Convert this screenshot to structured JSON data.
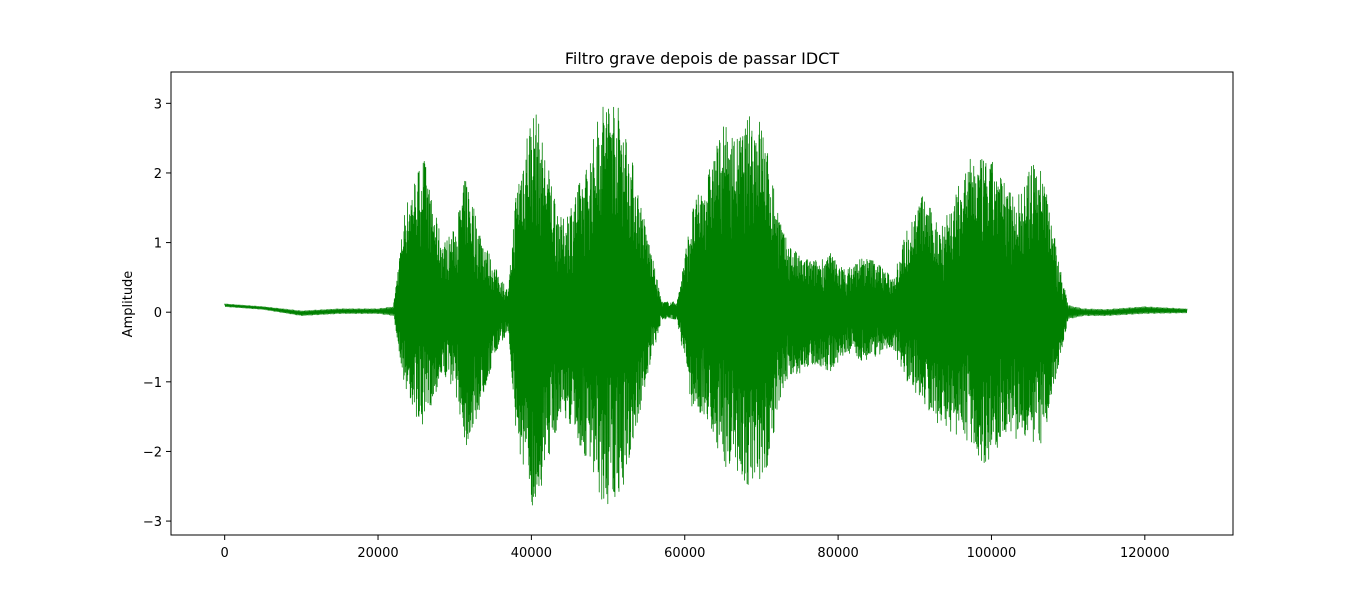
{
  "chart_data": {
    "type": "line",
    "title": "Filtro grave depois de passar IDCT",
    "xlabel": "",
    "ylabel": "Amplitude",
    "xlim": [
      -7000,
      131500
    ],
    "ylim": [
      -3.2,
      3.45
    ],
    "xticks": [
      0,
      20000,
      40000,
      60000,
      80000,
      100000,
      120000
    ],
    "xtick_labels": [
      "0",
      "20000",
      "40000",
      "60000",
      "80000",
      "100000",
      "120000"
    ],
    "yticks": [
      -3,
      -2,
      -1,
      0,
      1,
      2,
      3
    ],
    "ytick_labels": [
      "−3",
      "−2",
      "−1",
      "0",
      "1",
      "2",
      "3"
    ],
    "grid": false,
    "legend": "none",
    "series": [
      {
        "color": "#008000",
        "n_samples": 125500,
        "envelope": {
          "x": [
            0,
            5000,
            10000,
            15000,
            20000,
            22000,
            23500,
            25000,
            26000,
            27000,
            28500,
            30000,
            31500,
            33000,
            35000,
            37000,
            38000,
            39500,
            40500,
            42000,
            44000,
            46000,
            47500,
            49000,
            50500,
            52000,
            53500,
            55000,
            57000,
            59000,
            61000,
            63000,
            65000,
            67000,
            68500,
            70000,
            71500,
            73000,
            75000,
            77000,
            79000,
            81000,
            83000,
            85000,
            87000,
            89000,
            91000,
            93000,
            95000,
            97000,
            99000,
            100500,
            102000,
            104000,
            105500,
            107000,
            108500,
            110000,
            112000,
            115000,
            120000,
            125000
          ],
          "upper": [
            0.12,
            0.08,
            0.02,
            0.05,
            0.05,
            0.08,
            1.5,
            2.0,
            2.25,
            1.6,
            1.0,
            1.2,
            2.0,
            1.3,
            0.7,
            0.3,
            1.8,
            2.7,
            2.95,
            2.2,
            1.3,
            1.8,
            2.2,
            3.0,
            3.17,
            2.8,
            2.0,
            1.2,
            0.15,
            0.15,
            1.5,
            2.0,
            2.7,
            2.5,
            2.85,
            2.8,
            1.9,
            1.1,
            0.8,
            0.75,
            0.85,
            0.6,
            0.8,
            0.75,
            0.5,
            1.2,
            1.7,
            1.3,
            1.6,
            2.2,
            2.2,
            2.15,
            1.8,
            1.75,
            2.2,
            2.0,
            0.9,
            0.1,
            0.05,
            0.04,
            0.08,
            0.05
          ],
          "lower": [
            0.08,
            0.04,
            -0.05,
            -0.02,
            -0.02,
            -0.05,
            -1.1,
            -1.5,
            -1.75,
            -1.3,
            -0.9,
            -1.1,
            -1.95,
            -1.5,
            -0.7,
            -0.25,
            -1.8,
            -2.6,
            -2.88,
            -2.2,
            -1.4,
            -1.9,
            -2.2,
            -2.7,
            -2.85,
            -2.5,
            -1.8,
            -1.0,
            -0.1,
            -0.1,
            -1.4,
            -1.6,
            -2.2,
            -2.3,
            -2.55,
            -2.7,
            -1.8,
            -1.0,
            -0.9,
            -0.75,
            -0.85,
            -0.6,
            -0.7,
            -0.65,
            -0.5,
            -1.0,
            -1.3,
            -1.6,
            -1.75,
            -1.85,
            -2.25,
            -2.0,
            -1.7,
            -1.9,
            -2.1,
            -1.75,
            -0.9,
            -0.1,
            -0.05,
            -0.05,
            -0.02,
            -0.01
          ]
        }
      }
    ]
  }
}
